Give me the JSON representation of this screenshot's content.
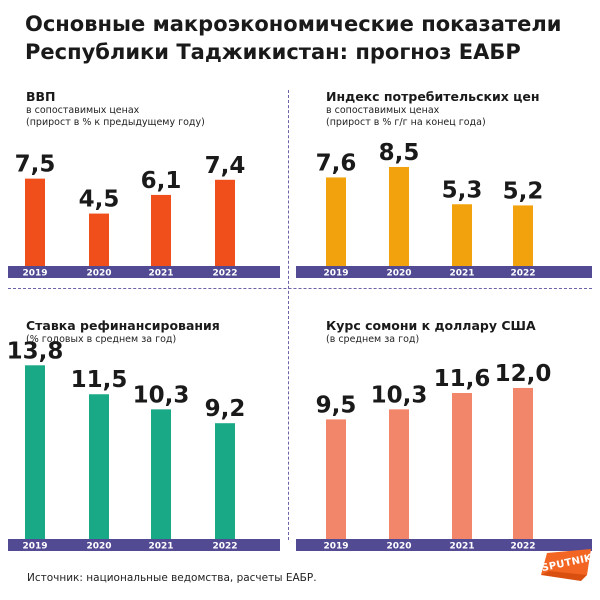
{
  "title": {
    "line1": "Основные макроэкономические показатели",
    "line2": "Республики Таджикистан: прогноз ЕАБР"
  },
  "chart_data": [
    {
      "type": "bar",
      "title": "ВВП",
      "subtitle_line1": "в сопоставимых ценах",
      "subtitle_line2": "(прирост в % к предыдущему году)",
      "categories": [
        "2019",
        "2020",
        "2021",
        "2022"
      ],
      "values": [
        7.5,
        4.5,
        6.1,
        7.4
      ],
      "labels": [
        "7,5",
        "4,5",
        "6,1",
        "7,4"
      ],
      "color": "#f04e1b",
      "ylim": [
        0,
        10.3
      ]
    },
    {
      "type": "bar",
      "title": "Индекс потребительских цен",
      "subtitle_line1": "в сопоставимых ценах",
      "subtitle_line2": "(прирост в % г/г на конец года)",
      "categories": [
        "2019",
        "2020",
        "2021",
        "2022"
      ],
      "values": [
        7.6,
        8.5,
        5.3,
        5.2
      ],
      "labels": [
        "7,6",
        "8,5",
        "5,3",
        "5,2"
      ],
      "color": "#f2a20c",
      "ylim": [
        0,
        10.3
      ]
    },
    {
      "type": "bar",
      "title": "Ставка рефинансирования",
      "subtitle_line1": "(% годовых в среднем за год)",
      "subtitle_line2": "",
      "categories": [
        "2019",
        "2020",
        "2021",
        "2022"
      ],
      "values": [
        13.8,
        11.5,
        10.3,
        9.2
      ],
      "labels": [
        "13,8",
        "11,5",
        "10,3",
        "9,2"
      ],
      "color": "#1aa986",
      "ylim": [
        0,
        14.3
      ]
    },
    {
      "type": "bar",
      "title": "Курс сомони к доллару США",
      "subtitle_line1": "(в среднем за год)",
      "subtitle_line2": "",
      "categories": [
        "2019",
        "2020",
        "2021",
        "2022"
      ],
      "values": [
        9.5,
        10.3,
        11.6,
        12.0
      ],
      "labels": [
        "9,5",
        "10,3",
        "11,6",
        "12,0"
      ],
      "color": "#f2866a",
      "ylim": [
        0,
        14.3
      ]
    }
  ],
  "colors": {
    "axis_band": "#524b94",
    "divider": "#6b63a8",
    "brand": "#f26522"
  },
  "source": "Источник: национальные ведомства, расчеты ЕАБР.",
  "logo": {
    "text": "SPUTNIK",
    "icon": "sputnik-logo-icon"
  }
}
